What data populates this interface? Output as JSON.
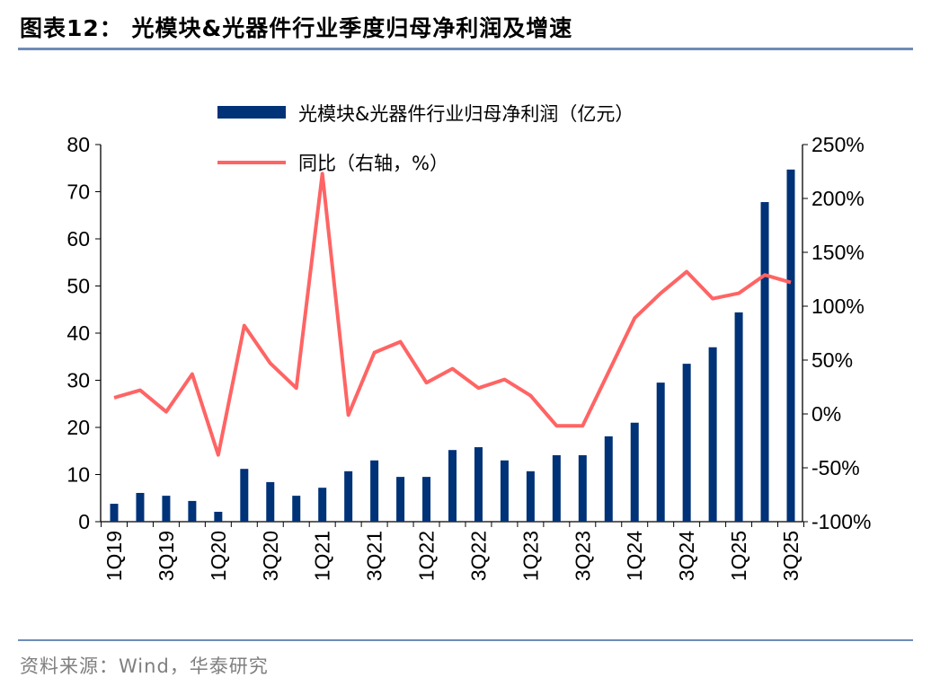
{
  "title": "图表12：  光模块&光器件行业季度归母净利润及增速",
  "source": "资料来源：Wind，华泰研究",
  "chart_data": {
    "type": "bar+line",
    "title": "光模块&光器件行业季度归母净利润及增速",
    "x_tick_labels": [
      "1Q19",
      "3Q19",
      "1Q20",
      "3Q20",
      "1Q21",
      "3Q21",
      "1Q22",
      "3Q22",
      "1Q23",
      "3Q23",
      "1Q24",
      "3Q24",
      "1Q25",
      "3Q25"
    ],
    "quarter_count": 27,
    "left_axis": {
      "ylim": [
        0,
        80
      ],
      "ticks": [
        "0",
        "10",
        "20",
        "30",
        "40",
        "50",
        "60",
        "70",
        "80"
      ]
    },
    "right_axis": {
      "ylim": [
        -100,
        250
      ],
      "ticks": [
        "-100%",
        "-50%",
        "0%",
        "50%",
        "100%",
        "150%",
        "200%",
        "250%"
      ]
    },
    "series": [
      {
        "name": "光模块&光器件行业归母净利润（亿元）",
        "type": "bar",
        "axis": "left",
        "color": "#003278",
        "values": [
          3.8,
          6.1,
          5.5,
          4.4,
          2.1,
          11.2,
          8.4,
          5.5,
          7.2,
          10.7,
          13.0,
          9.5,
          9.5,
          15.2,
          15.8,
          13.0,
          10.7,
          14.1,
          14.1,
          18.1,
          21.0,
          29.5,
          33.5,
          37.0,
          44.4,
          67.8,
          74.7
        ]
      },
      {
        "name": "同比（右轴，%）",
        "type": "line",
        "axis": "right",
        "color": "#ff6464",
        "values": [
          15,
          22,
          2,
          37,
          -38,
          82,
          47,
          24,
          223,
          -1,
          57,
          67,
          29,
          42,
          24,
          32,
          17,
          -11,
          -11,
          39,
          89,
          112,
          132,
          107,
          112,
          129,
          122
        ]
      }
    ],
    "legend_position": "top"
  }
}
